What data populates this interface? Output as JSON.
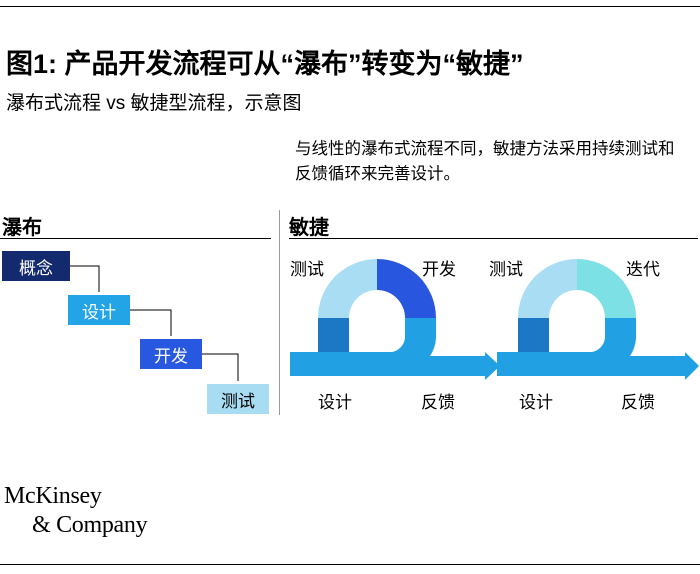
{
  "header": {
    "title": "图1: 产品开发流程可从“瀑布”转变为“敏捷”",
    "subtitle": "瀑布式流程 vs 敏捷型流程，示意图"
  },
  "note": "与线性的瀑布式流程不同，敏捷方法采用持续测试和反馈循环来完善设计。",
  "waterfall": {
    "heading": "瀑布",
    "steps": [
      {
        "label": "概念",
        "color": "#142a6e",
        "text_color": "#ffffff"
      },
      {
        "label": "设计",
        "color": "#22a4e6",
        "text_color": "#ffffff"
      },
      {
        "label": "开发",
        "color": "#2958e0",
        "text_color": "#ffffff"
      },
      {
        "label": "测试",
        "color": "#a7dcf3",
        "text_color": "#000000"
      }
    ]
  },
  "agile": {
    "heading": "敏捷",
    "cycle1": {
      "top_left": "测试",
      "top_right": "开发",
      "bottom_left": "设计",
      "bottom_right": "反馈"
    },
    "cycle2": {
      "top_left": "测试",
      "top_right": "迭代",
      "bottom_left": "设计",
      "bottom_right": "反馈"
    },
    "colors": {
      "arrow": "#21a0e4",
      "ring_top_left": "#a9ddf4",
      "ring_left": "#1c78c4",
      "dev": "#2856df",
      "iterate": "#7de0e4"
    }
  },
  "footer": {
    "logo_line1": "McKinsey",
    "logo_line2": "& Company"
  }
}
